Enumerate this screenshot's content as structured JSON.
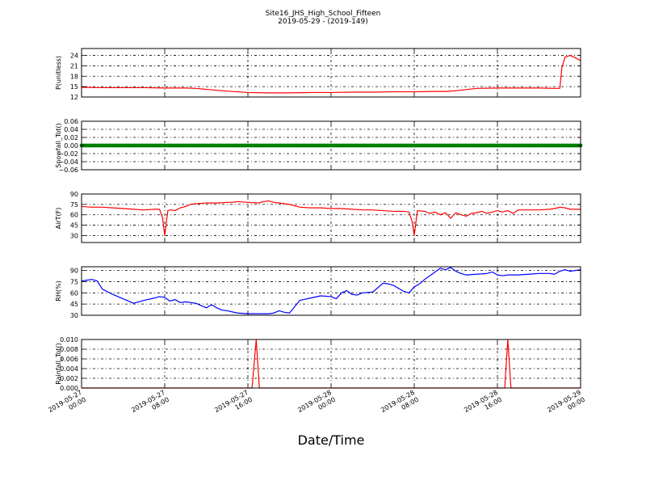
{
  "figure": {
    "title_line1": "Site16_JHS_High_School_Fifteen",
    "title_line2": "2019-05-29 - (2019-149)",
    "xlabel": "Date/Time",
    "x_tick_labels": [
      [
        "2019-05-27",
        "00:00"
      ],
      [
        "2019-05-27",
        "08:00"
      ],
      [
        "2019-05-27",
        "16:00"
      ],
      [
        "2019-05-28",
        "00:00"
      ],
      [
        "2019-05-28",
        "08:00"
      ],
      [
        "2019-05-28",
        "16:00"
      ],
      [
        "2019-05-29",
        "00:00"
      ]
    ]
  },
  "chart_data": [
    {
      "type": "line",
      "ylabel": "P(unitless)",
      "color": "#ff0000",
      "ylim": [
        12,
        26
      ],
      "yticks": [
        12,
        15,
        18,
        21,
        24
      ],
      "ytick_labels": [
        "12",
        "15",
        "18",
        "21",
        "24"
      ],
      "grid": true,
      "xlim": [
        0,
        48
      ],
      "x": [
        0,
        2,
        4,
        6,
        8,
        10,
        11,
        12,
        14,
        16,
        18,
        20,
        22,
        24,
        26,
        28,
        30,
        32,
        34,
        35,
        36,
        38,
        40,
        42,
        44,
        45.5,
        46,
        46.2,
        46.5,
        47,
        47.5,
        48
      ],
      "y": [
        14.8,
        14.7,
        14.7,
        14.7,
        14.6,
        14.6,
        14.5,
        14.2,
        13.7,
        13.3,
        13.2,
        13.2,
        13.3,
        13.3,
        13.4,
        13.4,
        13.5,
        13.5,
        13.6,
        13.6,
        13.8,
        14.5,
        14.6,
        14.6,
        14.6,
        14.5,
        14.5,
        20.5,
        23.5,
        24.0,
        23.3,
        22.5
      ]
    },
    {
      "type": "scatter",
      "ylabel": "Snowfall_Tot()",
      "color": "#008000",
      "ylim": [
        -0.06,
        0.06
      ],
      "yticks": [
        -0.06,
        -0.04,
        -0.02,
        0.0,
        0.02,
        0.04,
        0.06
      ],
      "ytick_labels": [
        "−0.06",
        "−0.04",
        "−0.02",
        "0.00",
        "0.02",
        "0.04",
        "0.06"
      ],
      "grid": true,
      "xlim": [
        0,
        48
      ],
      "series_value": 0.0,
      "note": ""
    },
    {
      "type": "line",
      "ylabel": "AirT(F)",
      "color": "#ff0000",
      "ylim": [
        20,
        90
      ],
      "yticks": [
        30,
        45,
        60,
        75,
        90
      ],
      "ytick_labels": [
        "30",
        "45",
        "60",
        "75",
        "90"
      ],
      "grid": true,
      "xlim": [
        0,
        48
      ],
      "x": [
        0,
        1,
        2,
        3,
        4,
        5,
        6,
        7,
        7.5,
        7.8,
        8.0,
        8.3,
        8.6,
        9,
        9.5,
        10,
        10.5,
        11,
        12,
        13,
        14,
        14.5,
        15,
        16,
        17,
        17.5,
        18,
        18.5,
        19,
        20,
        21,
        22,
        23,
        24,
        25,
        26,
        27,
        28,
        29,
        30,
        31,
        31.5,
        31.8,
        32.0,
        32.3,
        33,
        33.5,
        34,
        34.5,
        35,
        35.5,
        36,
        36.5,
        37,
        37.5,
        38,
        38.5,
        39,
        39.5,
        40,
        40.5,
        41,
        41.5,
        42,
        43,
        44,
        45,
        45.5,
        46,
        46.5,
        47,
        48
      ],
      "y": [
        72,
        71,
        71,
        70,
        69,
        68,
        67,
        68,
        68,
        55,
        30,
        66,
        67,
        66,
        70,
        72,
        75,
        76,
        77,
        77,
        78,
        78,
        79,
        78,
        77,
        79,
        80,
        78,
        77,
        75,
        71,
        70,
        70,
        69,
        69,
        68,
        67,
        67,
        66,
        65,
        65,
        64,
        50,
        30,
        66,
        65,
        62,
        64,
        60,
        63,
        55,
        63,
        60,
        58,
        62,
        63,
        65,
        62,
        64,
        66,
        64,
        66,
        62,
        67,
        67,
        67,
        68,
        69,
        71,
        70,
        68,
        68
      ]
    },
    {
      "type": "line",
      "ylabel": "RH(%)",
      "color": "#0000ff",
      "ylim": [
        30,
        95
      ],
      "yticks": [
        30,
        45,
        60,
        75,
        90
      ],
      "ytick_labels": [
        "30",
        "45",
        "60",
        "75",
        "90"
      ],
      "grid": true,
      "xlim": [
        0,
        48
      ],
      "x": [
        0,
        0.5,
        1,
        1.5,
        2,
        3,
        4,
        5,
        6,
        7,
        7.5,
        8,
        8.5,
        9,
        9.5,
        10,
        10.5,
        11,
        11.5,
        12,
        12.5,
        13,
        13.5,
        14,
        15,
        16,
        17,
        18,
        18.5,
        19,
        19.5,
        20,
        21,
        22,
        23,
        24,
        24.5,
        25,
        25.5,
        26,
        26.5,
        27,
        28,
        29,
        29.5,
        30,
        31,
        31.5,
        32,
        32.5,
        33,
        34,
        34.5,
        35,
        35.5,
        36,
        36.5,
        37,
        38,
        39,
        39.5,
        40,
        40.5,
        41,
        42,
        43,
        44,
        45,
        45.5,
        46,
        46.5,
        47,
        47.5,
        48
      ],
      "y": [
        76,
        77,
        78,
        76,
        65,
        58,
        52,
        46,
        50,
        53,
        55,
        54,
        49,
        51,
        47,
        48,
        47,
        46,
        43,
        40,
        44,
        40,
        37,
        36,
        33,
        32,
        32,
        32,
        33,
        36,
        34,
        33,
        50,
        53,
        56,
        55,
        52,
        60,
        63,
        58,
        57,
        60,
        61,
        73,
        72,
        70,
        62,
        60,
        68,
        72,
        78,
        88,
        93,
        91,
        94,
        89,
        86,
        84,
        85,
        86,
        88,
        84,
        83,
        84,
        84,
        85,
        86,
        86,
        85,
        89,
        91,
        89,
        90,
        91
      ]
    },
    {
      "type": "line",
      "ylabel": "Rainfall_Tot()",
      "color": "#ff0000",
      "ylim": [
        0.0,
        0.01
      ],
      "yticks": [
        0.0,
        0.002,
        0.004,
        0.006,
        0.008,
        0.01
      ],
      "ytick_labels": [
        "0.000",
        "0.002",
        "0.004",
        "0.006",
        "0.008",
        "0.010"
      ],
      "grid": true,
      "xlim": [
        0,
        48
      ],
      "x": [
        0,
        16.4,
        16.8,
        17.1,
        40.7,
        41.0,
        41.3,
        48
      ],
      "y": [
        0,
        0,
        0.01,
        0,
        0,
        0.01,
        0,
        0
      ]
    }
  ]
}
